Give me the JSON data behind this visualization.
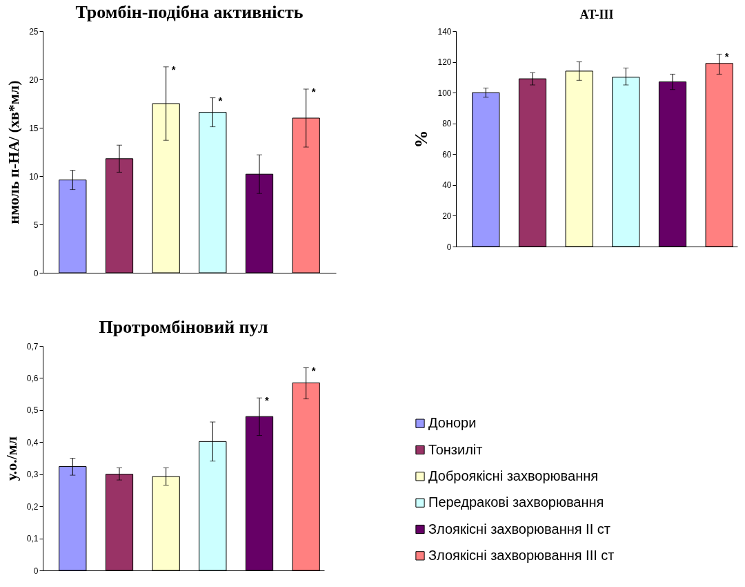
{
  "chart_data": [
    {
      "type": "bar",
      "title": "Тромбін-подібна активність",
      "ylabel": "нмоль п-НА/ (хв*мл)",
      "categories": [
        null
      ],
      "ylim": [
        0,
        25
      ],
      "yticks": [
        0,
        5,
        10,
        15,
        20,
        25
      ],
      "grid": false,
      "legend": false,
      "tick_labels": "y",
      "series": [
        {
          "color": "#9999ff",
          "values": [
            9.6
          ],
          "errors": [
            [
              8.6,
              10.6
            ]
          ]
        },
        {
          "color": "#993366",
          "values": [
            11.8
          ],
          "errors": [
            [
              10.4,
              13.2
            ]
          ]
        },
        {
          "color": "#ffffcc",
          "values": [
            17.5
          ],
          "errors": [
            [
              13.7,
              21.3
            ]
          ],
          "value_labels": [
            "*"
          ]
        },
        {
          "color": "#ccffff",
          "values": [
            16.6
          ],
          "errors": [
            [
              15.1,
              18.1
            ]
          ],
          "value_labels": [
            "*"
          ]
        },
        {
          "color": "#660066",
          "values": [
            10.2
          ],
          "errors": [
            [
              8.2,
              12.2
            ]
          ]
        },
        {
          "color": "#ff8080",
          "values": [
            16.0
          ],
          "errors": [
            [
              13.0,
              19.0
            ]
          ],
          "value_labels": [
            "*"
          ]
        }
      ]
    },
    {
      "type": "bar",
      "title": "AT-III",
      "ylabel": "%",
      "categories": [
        null
      ],
      "ylim": [
        0,
        140
      ],
      "yticks": [
        0,
        20,
        40,
        60,
        80,
        100,
        120,
        140
      ],
      "grid": false,
      "legend": false,
      "tick_labels": "y",
      "series": [
        {
          "color": "#9999ff",
          "values": [
            100
          ],
          "errors": [
            [
              97,
              103
            ]
          ]
        },
        {
          "color": "#993366",
          "values": [
            109
          ],
          "errors": [
            [
              105,
              113
            ]
          ]
        },
        {
          "color": "#ffffcc",
          "values": [
            114
          ],
          "errors": [
            [
              108,
              120
            ]
          ]
        },
        {
          "color": "#ccffff",
          "values": [
            110
          ],
          "errors": [
            [
              105,
              116
            ]
          ]
        },
        {
          "color": "#660066",
          "values": [
            107
          ],
          "errors": [
            [
              102,
              112
            ]
          ]
        },
        {
          "color": "#ff8080",
          "values": [
            119
          ],
          "errors": [
            [
              112,
              125
            ]
          ],
          "value_labels": [
            "*"
          ]
        }
      ]
    },
    {
      "type": "bar",
      "title": "Протромбіновий пул",
      "ylabel": "у.о./мл",
      "categories": [
        null
      ],
      "ylim": [
        0,
        0.7
      ],
      "yticks": [
        {
          "value": 0,
          "label": "0"
        },
        {
          "value": 0.1,
          "label": "0,1"
        },
        {
          "value": 0.2,
          "label": "0,2"
        },
        {
          "value": 0.3,
          "label": "0,3"
        },
        {
          "value": 0.4,
          "label": "0,4"
        },
        {
          "value": 0.5,
          "label": "0,5"
        },
        {
          "value": 0.6,
          "label": "0,6"
        },
        {
          "value": 0.7,
          "label": "0,7"
        }
      ],
      "grid": false,
      "legend": "right",
      "tick_labels": "y",
      "series": [
        {
          "name": "Донори",
          "color": "#9999ff",
          "values": [
            0.324
          ],
          "errors": [
            [
              0.297,
              0.35
            ]
          ]
        },
        {
          "name": "Тонзиліт",
          "color": "#993366",
          "values": [
            0.3
          ],
          "errors": [
            [
              0.282,
              0.32
            ]
          ]
        },
        {
          "name": "Доброякісні захворювання",
          "color": "#ffffcc",
          "values": [
            0.293
          ],
          "errors": [
            [
              0.266,
              0.32
            ]
          ]
        },
        {
          "name": "Передракові захворювання",
          "color": "#ccffff",
          "values": [
            0.402
          ],
          "errors": [
            [
              0.341,
              0.463
            ]
          ]
        },
        {
          "name": "Злоякісні захворювання II ст",
          "color": "#660066",
          "values": [
            0.48
          ],
          "errors": [
            [
              0.421,
              0.538
            ]
          ],
          "value_labels": [
            "*"
          ]
        },
        {
          "name": "Злоякісні захворювання III ст",
          "color": "#ff8080",
          "values": [
            0.585
          ],
          "errors": [
            [
              0.535,
              0.632
            ]
          ],
          "value_labels": [
            "*"
          ]
        }
      ]
    }
  ]
}
